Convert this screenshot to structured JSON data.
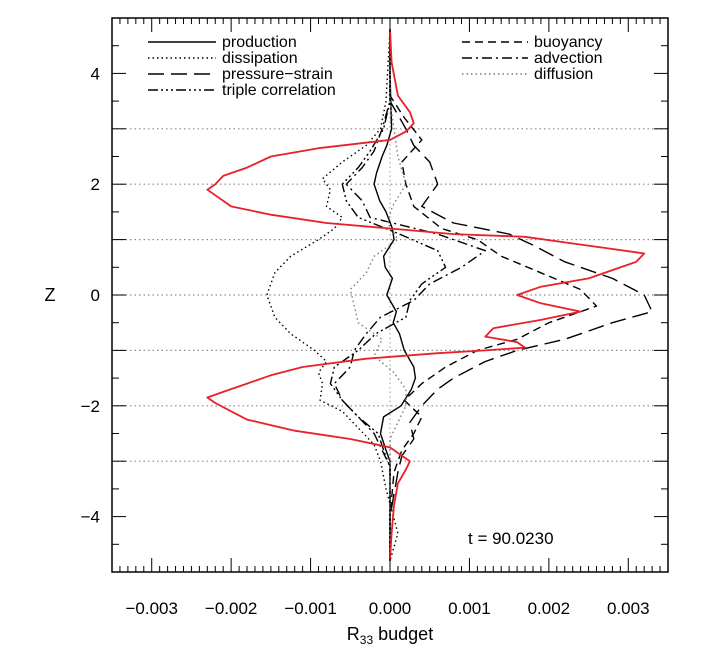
{
  "chart_data": {
    "type": "line",
    "xlabel": "R",
    "xlabel_sub": "33",
    "xlabel_rest": " budget",
    "ylabel": "Z",
    "xlim": [
      -0.0035,
      0.0035
    ],
    "ylim": [
      -5,
      5
    ],
    "x_ticks": [
      -0.003,
      -0.002,
      -0.001,
      0.0,
      0.001,
      0.002,
      0.003
    ],
    "x_tick_labels": [
      "−0.003",
      "−0.002",
      "−0.001",
      "0.000",
      "0.001",
      "0.002",
      "0.003"
    ],
    "y_ticks": [
      -4,
      -2,
      0,
      2,
      4
    ],
    "y_tick_labels": [
      "−4",
      "−2",
      "0",
      "2",
      "4"
    ],
    "h_reference_lines_y": [
      3,
      2,
      1,
      0,
      -1,
      -2,
      -3
    ],
    "annotation": "t  =  90.0230",
    "legend": [
      {
        "label": "production",
        "dash": "solid",
        "column": "left"
      },
      {
        "label": "dissipation",
        "dash": "dot",
        "column": "left"
      },
      {
        "label": "pressure−strain",
        "dash": "longdash",
        "column": "left"
      },
      {
        "label": "triple correlation",
        "dash": "dashdotdotdot",
        "column": "left"
      },
      {
        "label": "buoyancy",
        "dash": "dash",
        "column": "right"
      },
      {
        "label": "advection",
        "dash": "dashdot",
        "column": "right"
      },
      {
        "label": "diffusion",
        "dash": "dot",
        "column": "right"
      }
    ],
    "series": [
      {
        "name": "production",
        "color": "#000000",
        "dash": "solid",
        "z": [
          4.8,
          4.0,
          3.0,
          2.7,
          2.5,
          2.2,
          2.0,
          1.7,
          1.5,
          1.2,
          1.0,
          0.7,
          0.5,
          0.3,
          0.0,
          -0.3,
          -0.5,
          -0.7,
          -1.0,
          -1.3,
          -1.5,
          -1.7,
          -2.0,
          -2.2,
          -2.5,
          -2.8,
          -3.0,
          -4.0,
          -4.8
        ],
        "x": [
          0.0,
          0.0,
          2e-05,
          -4e-05,
          -0.0001,
          -0.00017,
          -0.0002,
          -0.00013,
          -5e-05,
          3e-05,
          5e-05,
          -8e-05,
          -6e-05,
          3e-05,
          -4e-05,
          8e-05,
          4e-05,
          0.00012,
          0.00018,
          0.0003,
          0.00032,
          0.00027,
          0.00014,
          -8e-05,
          -0.00012,
          -5e-05,
          0.0,
          0.0,
          0.0
        ]
      },
      {
        "name": "dissipation",
        "color": "#000000",
        "dash": "dot",
        "z": [
          4.8,
          3.5,
          3.0,
          2.7,
          2.4,
          2.1,
          1.9,
          1.6,
          1.4,
          1.2,
          1.0,
          0.7,
          0.4,
          0.0,
          -0.4,
          -0.7,
          -1.0,
          -1.2,
          -1.4,
          -1.6,
          -1.9,
          -2.1,
          -2.4,
          -2.7,
          -3.0,
          -3.5,
          -4.3,
          -4.8
        ],
        "x": [
          0.0,
          -5e-05,
          -0.00012,
          -0.0003,
          -0.0006,
          -0.00085,
          -0.00075,
          -0.0008,
          -0.0006,
          -0.0007,
          -0.0009,
          -0.00125,
          -0.00145,
          -0.00155,
          -0.00145,
          -0.00125,
          -0.00095,
          -0.0008,
          -0.0009,
          -0.00085,
          -0.00088,
          -0.0006,
          -0.0004,
          -0.0002,
          -0.00012,
          -5e-05,
          0.0001,
          0.0
        ]
      },
      {
        "name": "pressure−strain",
        "color": "#000000",
        "dash": "longdash",
        "z": [
          4.8,
          3.5,
          3.0,
          2.7,
          2.4,
          2.0,
          1.6,
          1.3,
          1.1,
          0.9,
          0.6,
          0.3,
          0.0,
          -0.3,
          -0.5,
          -0.8,
          -1.0,
          -1.2,
          -1.5,
          -1.7,
          -2.0,
          -2.3,
          -2.6,
          -2.9,
          -3.2,
          -4.0,
          -4.8
        ],
        "x": [
          0.0,
          0.0,
          0.0002,
          0.0003,
          0.0005,
          0.0006,
          0.0004,
          0.0008,
          0.0015,
          0.0018,
          0.0022,
          0.0028,
          0.0032,
          0.0033,
          0.0028,
          0.0022,
          0.0016,
          0.0012,
          0.0008,
          0.0006,
          0.0004,
          0.00025,
          0.0003,
          0.00015,
          0.0001,
          0.0,
          0.0
        ]
      },
      {
        "name": "buoyancy",
        "color": "#000000",
        "dash": "dash",
        "z": [
          4.8,
          3.6,
          3.2,
          2.8,
          2.4,
          2.0,
          1.6,
          1.2,
          1.0,
          0.7,
          0.4,
          0.1,
          -0.2,
          -0.5,
          -0.8,
          -1.0,
          -1.3,
          -1.6,
          -1.9,
          -2.2,
          -2.5,
          -2.8,
          -3.2,
          -4.0,
          -4.8
        ],
        "x": [
          0.0,
          0.0,
          0.00018,
          0.0004,
          0.00015,
          0.0002,
          0.0003,
          0.00065,
          0.0011,
          0.0014,
          0.0019,
          0.0024,
          0.0026,
          0.002,
          0.0016,
          0.0011,
          0.0007,
          0.0004,
          0.00018,
          0.0004,
          0.0003,
          0.00015,
          5e-05,
          0.0,
          0.0
        ]
      },
      {
        "name": "advection",
        "color": "#000000",
        "dash": "dashdot",
        "z": [
          4.8,
          3.5,
          3.0,
          2.6,
          2.3,
          2.0,
          1.7,
          1.4,
          1.1,
          0.8,
          0.5,
          0.2,
          -0.1,
          -0.4,
          -0.7,
          -1.0,
          -1.3,
          -1.6,
          -1.9,
          -2.2,
          -2.5,
          -2.8,
          -3.1,
          -4.0,
          -4.8
        ],
        "x": [
          0.0,
          0.0,
          -0.0001,
          -0.0002,
          -0.00035,
          -0.00055,
          -0.00035,
          -0.00025,
          0.0006,
          0.0012,
          0.0009,
          0.0005,
          0.0003,
          -0.00012,
          -0.0003,
          -0.00045,
          -0.0005,
          -0.0007,
          -0.0006,
          -0.0004,
          -0.0002,
          -0.0001,
          0.0,
          0.0,
          0.0
        ]
      },
      {
        "name": "triple correlation",
        "color": "#000000",
        "dash": "dashdotdotdot",
        "z": [
          4.8,
          3.5,
          3.0,
          2.6,
          2.3,
          2.0,
          1.7,
          1.4,
          1.1,
          0.8,
          0.5,
          0.2,
          -0.1,
          -0.4,
          -0.7,
          -1.0,
          -1.3,
          -1.6,
          -1.9,
          -2.2,
          -2.5,
          -2.8,
          -3.1,
          -4.0,
          -4.8
        ],
        "x": [
          0.0,
          0.0,
          -8e-05,
          -0.00025,
          -0.0004,
          -0.0006,
          -0.00055,
          -0.0004,
          0.00012,
          0.0006,
          0.0007,
          0.0004,
          0.00025,
          0.0002,
          -0.00018,
          -0.0004,
          -0.0007,
          -0.00075,
          -0.0006,
          -0.0004,
          -0.00015,
          -8e-05,
          0.0,
          0.0,
          0.0
        ]
      },
      {
        "name": "diffusion",
        "color": "#7a7a7a",
        "dash": "dot",
        "z": [
          4.8,
          3.5,
          3.0,
          2.5,
          2.0,
          1.6,
          1.3,
          1.0,
          0.7,
          0.4,
          0.1,
          -0.2,
          -0.5,
          -0.8,
          -1.1,
          -1.4,
          -1.7,
          -2.0,
          -2.3,
          -2.6,
          -3.0,
          -4.0,
          -4.8
        ],
        "x": [
          0.0,
          0.0,
          5e-05,
          0.0001,
          0.0002,
          3e-05,
          -3e-05,
          0.0001,
          -0.0002,
          -0.0003,
          -0.0005,
          -0.00045,
          -0.0004,
          -0.0001,
          -0.0002,
          5e-05,
          0.0002,
          0.0002,
          0.0001,
          0.0,
          0.0,
          0.0,
          0.0
        ]
      },
      {
        "name": "",
        "color": "#e8202a",
        "dash": "solid",
        "z": [
          4.8,
          4.2,
          3.6,
          3.3,
          3.1,
          2.95,
          2.8,
          2.65,
          2.5,
          2.3,
          2.15,
          2.0,
          1.9,
          1.8,
          1.7,
          1.6,
          1.45,
          1.3,
          1.2,
          1.1,
          1.05,
          0.95,
          0.85,
          0.75,
          0.6,
          0.45,
          0.3,
          0.15,
          0.0,
          -0.15,
          -0.3,
          -0.45,
          -0.6,
          -0.75,
          -0.85,
          -0.95,
          -1.0,
          -1.05,
          -1.15,
          -1.3,
          -1.45,
          -1.6,
          -1.75,
          -1.85,
          -1.95,
          -2.1,
          -2.25,
          -2.45,
          -2.6,
          -2.75,
          -2.9,
          -3.0,
          -3.15,
          -3.4,
          -3.8,
          -4.3,
          -4.8
        ],
        "x": [
          0.0,
          2e-05,
          0.0001,
          0.00025,
          0.0003,
          0.0002,
          0.0,
          -0.0009,
          -0.0015,
          -0.0018,
          -0.0021,
          -0.0022,
          -0.0023,
          -0.0022,
          -0.0021,
          -0.002,
          -0.0015,
          -0.0008,
          0.0,
          0.0008,
          0.0017,
          0.0022,
          0.0027,
          0.0032,
          0.0031,
          0.0028,
          0.0025,
          0.0019,
          0.0016,
          0.0019,
          0.0024,
          0.0019,
          0.0013,
          0.0012,
          0.0016,
          0.0017,
          0.0012,
          0.0006,
          -0.0003,
          -0.0011,
          -0.0015,
          -0.0018,
          -0.0021,
          -0.0023,
          -0.0022,
          -0.002,
          -0.0018,
          -0.0012,
          -0.0005,
          0.0,
          0.00015,
          0.00025,
          0.0002,
          0.0001,
          5e-05,
          2e-05,
          0.0
        ]
      }
    ]
  }
}
